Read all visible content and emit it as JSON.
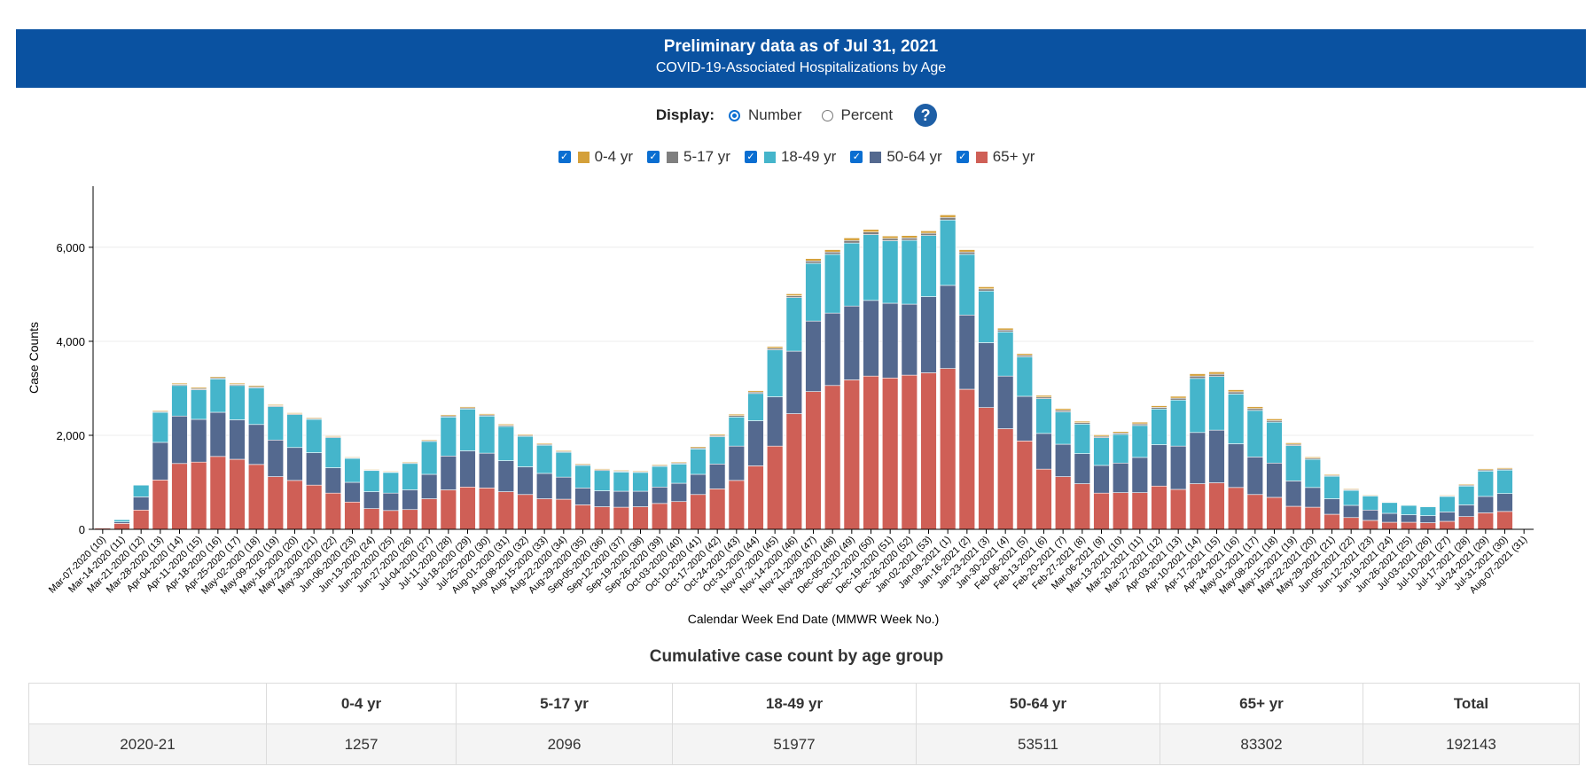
{
  "header": {
    "title": "Preliminary data as of Jul 31, 2021",
    "subtitle": "COVID-19-Associated Hospitalizations by Age"
  },
  "display": {
    "label": "Display:",
    "options": [
      "Number",
      "Percent"
    ],
    "selected": "Number",
    "help_icon": "question-circle-icon"
  },
  "legend": [
    {
      "label": "0-4 yr",
      "color": "#d4a03a",
      "checked": true
    },
    {
      "label": "5-17 yr",
      "color": "#7f7f7f",
      "checked": true
    },
    {
      "label": "18-49 yr",
      "color": "#45b5cb",
      "checked": true
    },
    {
      "label": "50-64 yr",
      "color": "#54698f",
      "checked": true
    },
    {
      "label": "65+ yr",
      "color": "#cf5f56",
      "checked": true
    }
  ],
  "chart_data": {
    "type": "bar",
    "stacked": true,
    "title": "",
    "xlabel": "Calendar Week End Date (MMWR Week No.)",
    "ylabel": "Case Counts",
    "ylim": [
      0,
      7300
    ],
    "yticks": [
      0,
      2000,
      4000,
      6000
    ],
    "ytick_labels": [
      "0",
      "2,000",
      "4,000",
      "6,000"
    ],
    "grid": true,
    "categories": [
      "Mar-07-2020 (10)",
      "Mar-14-2020 (11)",
      "Mar-21-2020 (12)",
      "Mar-28-2020 (13)",
      "Apr-04-2020 (14)",
      "Apr-11-2020 (15)",
      "Apr-18-2020 (16)",
      "Apr-25-2020 (17)",
      "May-02-2020 (18)",
      "May-09-2020 (19)",
      "May-16-2020 (20)",
      "May-23-2020 (21)",
      "May-30-2020 (22)",
      "Jun-06-2020 (23)",
      "Jun-13-2020 (24)",
      "Jun-20-2020 (25)",
      "Jun-27-2020 (26)",
      "Jul-04-2020 (27)",
      "Jul-11-2020 (28)",
      "Jul-18-2020 (29)",
      "Jul-25-2020 (30)",
      "Aug-01-2020 (31)",
      "Aug-08-2020 (32)",
      "Aug-15-2020 (33)",
      "Aug-22-2020 (34)",
      "Aug-29-2020 (35)",
      "Sep-05-2020 (36)",
      "Sep-12-2020 (37)",
      "Sep-19-2020 (38)",
      "Sep-26-2020 (39)",
      "Oct-03-2020 (40)",
      "Oct-10-2020 (41)",
      "Oct-17-2020 (42)",
      "Oct-24-2020 (43)",
      "Oct-31-2020 (44)",
      "Nov-07-2020 (45)",
      "Nov-14-2020 (46)",
      "Nov-21-2020 (47)",
      "Nov-28-2020 (48)",
      "Dec-05-2020 (49)",
      "Dec-12-2020 (50)",
      "Dec-19-2020 (51)",
      "Dec-26-2020 (52)",
      "Jan-02-2021 (53)",
      "Jan-09-2021 (1)",
      "Jan-16-2021 (2)",
      "Jan-23-2021 (3)",
      "Jan-30-2021 (4)",
      "Feb-06-2021 (5)",
      "Feb-13-2021 (6)",
      "Feb-20-2021 (7)",
      "Feb-27-2021 (8)",
      "Mar-06-2021 (9)",
      "Mar-13-2021 (10)",
      "Mar-20-2021 (11)",
      "Mar-27-2021 (12)",
      "Apr-03-2021 (13)",
      "Apr-10-2021 (14)",
      "Apr-17-2021 (15)",
      "Apr-24-2021 (16)",
      "May-01-2021 (17)",
      "May-08-2021 (18)",
      "May-15-2021 (19)",
      "May-22-2021 (20)",
      "May-29-2021 (21)",
      "Jun-05-2021 (22)",
      "Jun-12-2021 (23)",
      "Jun-19-2021 (24)",
      "Jun-26-2021 (25)",
      "Jul-03-2021 (26)",
      "Jul-10-2021 (27)",
      "Jul-17-2021 (28)",
      "Jul-24-2021 (29)",
      "Jul-31-2021 (30)",
      "Aug-07-2021 (31)"
    ],
    "series": [
      {
        "name": "65+ yr",
        "color": "#cf5f56",
        "values": [
          25,
          125,
          410,
          1050,
          1400,
          1430,
          1550,
          1490,
          1380,
          1120,
          1040,
          940,
          770,
          580,
          440,
          400,
          420,
          650,
          840,
          900,
          880,
          800,
          740,
          650,
          640,
          520,
          480,
          470,
          480,
          550,
          590,
          740,
          860,
          1040,
          1350,
          1770,
          2460,
          2930,
          3060,
          3180,
          3260,
          3220,
          3280,
          3330,
          3420,
          2980,
          2590,
          2140,
          1880,
          1280,
          1120,
          970,
          770,
          780,
          780,
          920,
          850,
          970,
          990,
          890,
          740,
          680,
          490,
          470,
          320,
          250,
          190,
          150,
          150,
          140,
          170,
          270,
          350,
          380,
          0
        ]
      },
      {
        "name": "50-64 yr",
        "color": "#54698f",
        "values": [
          5,
          35,
          280,
          800,
          1010,
          910,
          940,
          840,
          850,
          780,
          700,
          690,
          540,
          420,
          360,
          370,
          420,
          520,
          720,
          770,
          740,
          660,
          590,
          540,
          470,
          360,
          340,
          340,
          330,
          350,
          390,
          430,
          530,
          730,
          960,
          1050,
          1330,
          1500,
          1540,
          1570,
          1610,
          1590,
          1510,
          1620,
          1770,
          1580,
          1380,
          1120,
          950,
          760,
          690,
          640,
          590,
          630,
          750,
          880,
          920,
          1090,
          1120,
          930,
          800,
          730,
          540,
          420,
          330,
          260,
          220,
          190,
          160,
          150,
          200,
          250,
          350,
          380,
          0
        ]
      },
      {
        "name": "18-49 yr",
        "color": "#45b5cb",
        "values": [
          5,
          45,
          250,
          640,
          650,
          630,
          710,
          730,
          780,
          710,
          700,
          710,
          640,
          510,
          450,
          440,
          560,
          700,
          830,
          890,
          790,
          730,
          650,
          600,
          530,
          480,
          430,
          410,
          400,
          440,
          410,
          540,
          580,
          620,
          580,
          1000,
          1140,
          1230,
          1250,
          1340,
          1400,
          1330,
          1360,
          1300,
          1390,
          1290,
          1100,
          940,
          840,
          740,
          690,
          630,
          590,
          610,
          680,
          760,
          980,
          1150,
          1140,
          1060,
          990,
          870,
          750,
          600,
          480,
          320,
          300,
          230,
          200,
          190,
          330,
          400,
          540,
          500,
          0
        ]
      },
      {
        "name": "5-17 yr",
        "color": "#7f7f7f",
        "values": [
          0,
          3,
          10,
          20,
          25,
          25,
          25,
          25,
          25,
          22,
          20,
          20,
          20,
          15,
          15,
          15,
          18,
          20,
          25,
          25,
          25,
          25,
          22,
          22,
          20,
          20,
          20,
          18,
          18,
          20,
          20,
          25,
          25,
          30,
          30,
          35,
          40,
          50,
          50,
          55,
          55,
          50,
          50,
          50,
          55,
          50,
          45,
          40,
          35,
          35,
          35,
          30,
          30,
          30,
          35,
          35,
          40,
          50,
          50,
          45,
          40,
          35,
          30,
          25,
          20,
          18,
          15,
          12,
          12,
          12,
          15,
          20,
          25,
          25,
          0
        ]
      },
      {
        "name": "0-4 yr",
        "color": "#d4a03a",
        "values": [
          0,
          5,
          10,
          20,
          25,
          25,
          25,
          25,
          25,
          22,
          20,
          20,
          20,
          15,
          15,
          15,
          18,
          20,
          25,
          25,
          25,
          25,
          22,
          22,
          20,
          20,
          20,
          18,
          18,
          20,
          20,
          25,
          25,
          30,
          30,
          35,
          40,
          50,
          50,
          55,
          55,
          50,
          50,
          50,
          55,
          50,
          45,
          40,
          35,
          35,
          35,
          30,
          30,
          30,
          35,
          35,
          40,
          50,
          50,
          45,
          40,
          35,
          30,
          25,
          20,
          18,
          15,
          12,
          12,
          12,
          15,
          20,
          25,
          25,
          0
        ]
      }
    ],
    "legend_placement": "top-center"
  },
  "table": {
    "title": "Cumulative case count by age group",
    "headers": [
      "",
      "0-4 yr",
      "5-17 yr",
      "18-49 yr",
      "50-64 yr",
      "65+ yr",
      "Total"
    ],
    "rows": [
      [
        "2020-21",
        "1257",
        "2096",
        "51977",
        "53511",
        "83302",
        "192143"
      ]
    ]
  }
}
